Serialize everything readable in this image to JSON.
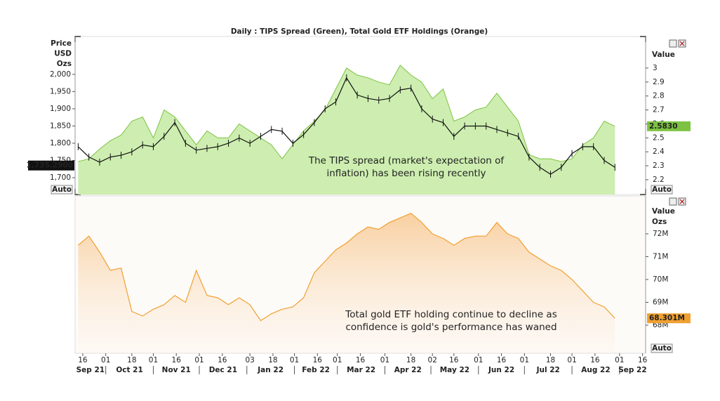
{
  "title": "Daily : TIPS Spread (Green), Total Gold ETF Holdings (Orange)",
  "chart_data": [
    {
      "type": "line",
      "y_axis_labels": [
        "Price",
        "USD",
        "Ozs"
      ],
      "y2_axis_label": "Value",
      "auto_buttons": [
        "Auto",
        "Auto"
      ],
      "annotation": [
        "The TIPS spread (market's expectation of",
        "inflation) has been rising  recently"
      ],
      "xlim": [
        "2021-09-11",
        "2022-09-18"
      ],
      "x": [
        "2021-09-13",
        "2021-09-20",
        "2021-09-27",
        "2021-10-04",
        "2021-10-11",
        "2021-10-18",
        "2021-10-25",
        "2021-11-01",
        "2021-11-08",
        "2021-11-15",
        "2021-11-22",
        "2021-11-29",
        "2021-12-06",
        "2021-12-13",
        "2021-12-20",
        "2021-12-27",
        "2022-01-03",
        "2022-01-10",
        "2022-01-17",
        "2022-01-24",
        "2022-01-31",
        "2022-02-07",
        "2022-02-14",
        "2022-02-21",
        "2022-02-28",
        "2022-03-07",
        "2022-03-14",
        "2022-03-21",
        "2022-03-28",
        "2022-04-04",
        "2022-04-11",
        "2022-04-18",
        "2022-04-25",
        "2022-05-02",
        "2022-05-09",
        "2022-05-16",
        "2022-05-23",
        "2022-05-30",
        "2022-06-06",
        "2022-06-13",
        "2022-06-20",
        "2022-06-27",
        "2022-07-04",
        "2022-07-11",
        "2022-07-18",
        "2022-07-25",
        "2022-08-01",
        "2022-08-08",
        "2022-08-15",
        "2022-08-22",
        "2022-08-29"
      ],
      "ylim": [
        1651,
        2110
      ],
      "yticks": [
        {
          "value": 1700,
          "label": "1,700"
        },
        {
          "value": 1750,
          "label": "1,750"
        },
        {
          "value": 1800,
          "label": "1,800"
        },
        {
          "value": 1850,
          "label": "1,850"
        },
        {
          "value": 1900,
          "label": "1,900"
        },
        {
          "value": 1950,
          "label": "1,950"
        },
        {
          "value": 2000,
          "label": "2,000"
        }
      ],
      "y2lim": [
        2.094,
        3.226
      ],
      "y2ticks": [
        2.2,
        2.3,
        2.4,
        2.5,
        2.6,
        2.7,
        2.8,
        2.9,
        3
      ],
      "series": [
        {
          "color": "#111111",
          "values": [
            1790,
            1760,
            1745,
            1760,
            1765,
            1775,
            1795,
            1790,
            1820,
            1860,
            1800,
            1780,
            1785,
            1790,
            1800,
            1815,
            1800,
            1820,
            1840,
            1835,
            1800,
            1825,
            1860,
            1900,
            1920,
            1990,
            1940,
            1930,
            1925,
            1930,
            1955,
            1960,
            1900,
            1870,
            1860,
            1820,
            1850,
            1850,
            1850,
            1840,
            1830,
            1820,
            1760,
            1730,
            1710,
            1730,
            1770,
            1790,
            1790,
            1750,
            1730
          ],
          "marker": {
            "value": 1735.29,
            "label": "1,735.2900"
          }
        },
        {
          "color": "#7dc242",
          "fill": "#cdeeb0",
          "axis": "y2",
          "values": [
            2.33,
            2.35,
            2.42,
            2.48,
            2.52,
            2.62,
            2.65,
            2.5,
            2.7,
            2.65,
            2.55,
            2.45,
            2.55,
            2.5,
            2.5,
            2.6,
            2.55,
            2.5,
            2.45,
            2.35,
            2.45,
            2.55,
            2.62,
            2.7,
            2.85,
            3.0,
            2.95,
            2.93,
            2.9,
            2.88,
            3.02,
            2.95,
            2.9,
            2.78,
            2.85,
            2.62,
            2.65,
            2.7,
            2.72,
            2.82,
            2.72,
            2.62,
            2.38,
            2.35,
            2.35,
            2.33,
            2.35,
            2.45,
            2.5,
            2.62,
            2.583
          ],
          "marker": {
            "value": 2.583,
            "label": "2.5830"
          }
        }
      ]
    },
    {
      "type": "line",
      "y2_axis_labels": [
        "Value",
        "Ozs"
      ],
      "auto_buttons": [
        "Auto"
      ],
      "annotation": [
        "Total gold ETF holding continue to decline as",
        "confidence is gold's performance has waned"
      ],
      "xlim": [
        "2021-09-11",
        "2022-09-18"
      ],
      "x": [
        "2021-09-13",
        "2021-09-20",
        "2021-09-27",
        "2021-10-04",
        "2021-10-11",
        "2021-10-18",
        "2021-10-25",
        "2021-11-01",
        "2021-11-08",
        "2021-11-15",
        "2021-11-22",
        "2021-11-29",
        "2021-12-06",
        "2021-12-13",
        "2021-12-20",
        "2021-12-27",
        "2022-01-03",
        "2022-01-10",
        "2022-01-17",
        "2022-01-24",
        "2022-01-31",
        "2022-02-07",
        "2022-02-14",
        "2022-02-21",
        "2022-02-28",
        "2022-03-07",
        "2022-03-14",
        "2022-03-21",
        "2022-03-28",
        "2022-04-04",
        "2022-04-11",
        "2022-04-18",
        "2022-04-25",
        "2022-05-02",
        "2022-05-09",
        "2022-05-16",
        "2022-05-23",
        "2022-05-30",
        "2022-06-06",
        "2022-06-13",
        "2022-06-20",
        "2022-06-27",
        "2022-07-04",
        "2022-07-11",
        "2022-07-18",
        "2022-07-25",
        "2022-08-01",
        "2022-08-08",
        "2022-08-15",
        "2022-08-22",
        "2022-08-29"
      ],
      "xticks": [
        {
          "value": "2021-09-16",
          "label": "16"
        },
        {
          "value": "2021-10-01",
          "label": "01"
        },
        {
          "value": "2021-10-18",
          "label": "18"
        },
        {
          "value": "2021-11-01",
          "label": "01"
        },
        {
          "value": "2021-11-16",
          "label": "16"
        },
        {
          "value": "2021-12-01",
          "label": "01"
        },
        {
          "value": "2021-12-16",
          "label": "16"
        },
        {
          "value": "2022-01-03",
          "label": "03"
        },
        {
          "value": "2022-01-18",
          "label": "18"
        },
        {
          "value": "2022-02-01",
          "label": "01"
        },
        {
          "value": "2022-02-16",
          "label": "16"
        },
        {
          "value": "2022-03-01",
          "label": "01"
        },
        {
          "value": "2022-03-16",
          "label": "16"
        },
        {
          "value": "2022-04-01",
          "label": "01"
        },
        {
          "value": "2022-04-18",
          "label": "18"
        },
        {
          "value": "2022-05-02",
          "label": "02"
        },
        {
          "value": "2022-05-16",
          "label": "16"
        },
        {
          "value": "2022-06-01",
          "label": "01"
        },
        {
          "value": "2022-06-16",
          "label": "16"
        },
        {
          "value": "2022-07-01",
          "label": "01"
        },
        {
          "value": "2022-07-18",
          "label": "18"
        },
        {
          "value": "2022-08-01",
          "label": "01"
        },
        {
          "value": "2022-08-16",
          "label": "16"
        },
        {
          "value": "2022-09-01",
          "label": "01"
        },
        {
          "value": "2022-09-16",
          "label": "16"
        }
      ],
      "month_labels": [
        {
          "value": "2021-09",
          "label": "Sep 21"
        },
        {
          "value": "2021-10",
          "label": "Oct 21"
        },
        {
          "value": "2021-11",
          "label": "Nov 21"
        },
        {
          "value": "2021-12",
          "label": "Dec 21"
        },
        {
          "value": "2022-01",
          "label": "Jan 22"
        },
        {
          "value": "2022-02",
          "label": "Feb 22"
        },
        {
          "value": "2022-03",
          "label": "Mar 22"
        },
        {
          "value": "2022-04",
          "label": "Apr 22"
        },
        {
          "value": "2022-05",
          "label": "May 22"
        },
        {
          "value": "2022-06",
          "label": "Jun 22"
        },
        {
          "value": "2022-07",
          "label": "Jul 22"
        },
        {
          "value": "2022-08",
          "label": "Aug 22"
        },
        {
          "value": "2022-09",
          "label": "Sep 22"
        }
      ],
      "y2lim": [
        66770000,
        73660000
      ],
      "y2ticks": [
        {
          "value": 68000000,
          "label": "68M"
        },
        {
          "value": 69000000,
          "label": "69M"
        },
        {
          "value": 70000000,
          "label": "70M"
        },
        {
          "value": 71000000,
          "label": "71M"
        },
        {
          "value": 72000000,
          "label": "72M"
        }
      ],
      "series": [
        {
          "color": "#f0a030",
          "axis": "y2",
          "values": [
            71500000,
            71900000,
            71200000,
            70400000,
            70500000,
            68600000,
            68400000,
            68700000,
            68900000,
            69300000,
            69000000,
            70400000,
            69300000,
            69200000,
            68900000,
            69200000,
            68900000,
            68200000,
            68500000,
            68700000,
            68800000,
            69200000,
            70300000,
            70800000,
            71300000,
            71600000,
            72000000,
            72300000,
            72200000,
            72500000,
            72700000,
            72900000,
            72500000,
            72000000,
            71800000,
            71500000,
            71800000,
            71900000,
            71900000,
            72500000,
            72000000,
            71800000,
            71200000,
            70900000,
            70600000,
            70400000,
            70000000,
            69500000,
            69000000,
            68800000,
            68301000
          ],
          "marker": {
            "value": 68301000,
            "label": "68.301M"
          }
        }
      ]
    }
  ]
}
